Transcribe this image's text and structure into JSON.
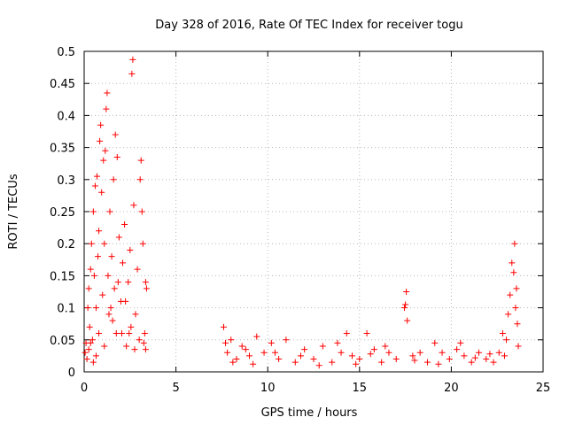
{
  "chart_data": {
    "type": "scatter",
    "title": "Day 328 of 2016, Rate Of TEC Index for receiver togu",
    "xlabel": "GPS time / hours",
    "ylabel": "ROTI / TECUs",
    "xlim": [
      0,
      25
    ],
    "ylim": [
      0,
      0.5
    ],
    "xticks": [
      0,
      5,
      10,
      15,
      20,
      25
    ],
    "xtick_labels": [
      "0",
      "5",
      "10",
      "15",
      "20",
      "25"
    ],
    "yticks": [
      0,
      0.05,
      0.1,
      0.15,
      0.2,
      0.25,
      0.3,
      0.35,
      0.4,
      0.45,
      0.5
    ],
    "ytick_labels": [
      "0",
      "0.05",
      "0.1",
      "0.15",
      "0.2",
      "0.25",
      "0.3",
      "0.35",
      "0.4",
      "0.45",
      "0.5"
    ],
    "grid": true,
    "marker": "+",
    "marker_color": "#ff0000",
    "legend": "none",
    "series": [
      {
        "values": [
          [
            0.05,
            0.03
          ],
          [
            0.1,
            0.045
          ],
          [
            0.15,
            0.02
          ],
          [
            0.2,
            0.1
          ],
          [
            0.25,
            0.13
          ],
          [
            0.3,
            0.07
          ],
          [
            0.35,
            0.16
          ],
          [
            0.4,
            0.2
          ],
          [
            0.45,
            0.05
          ],
          [
            0.5,
            0.25
          ],
          [
            0.55,
            0.15
          ],
          [
            0.6,
            0.29
          ],
          [
            0.65,
            0.1
          ],
          [
            0.7,
            0.305
          ],
          [
            0.75,
            0.18
          ],
          [
            0.8,
            0.22
          ],
          [
            0.85,
            0.36
          ],
          [
            0.9,
            0.385
          ],
          [
            0.95,
            0.28
          ],
          [
            1.0,
            0.12
          ],
          [
            1.05,
            0.33
          ],
          [
            1.1,
            0.2
          ],
          [
            1.15,
            0.345
          ],
          [
            1.2,
            0.41
          ],
          [
            1.25,
            0.435
          ],
          [
            1.3,
            0.15
          ],
          [
            1.35,
            0.09
          ],
          [
            1.4,
            0.25
          ],
          [
            1.5,
            0.18
          ],
          [
            1.6,
            0.3
          ],
          [
            1.65,
            0.13
          ],
          [
            1.7,
            0.37
          ],
          [
            1.75,
            0.06
          ],
          [
            1.8,
            0.335
          ],
          [
            1.9,
            0.21
          ],
          [
            2.0,
            0.11
          ],
          [
            2.1,
            0.17
          ],
          [
            2.2,
            0.23
          ],
          [
            2.3,
            0.04
          ],
          [
            2.4,
            0.14
          ],
          [
            2.5,
            0.19
          ],
          [
            2.55,
            0.07
          ],
          [
            2.6,
            0.465
          ],
          [
            2.65,
            0.487
          ],
          [
            2.7,
            0.26
          ],
          [
            2.8,
            0.09
          ],
          [
            2.9,
            0.16
          ],
          [
            3.0,
            0.05
          ],
          [
            3.05,
            0.3
          ],
          [
            3.1,
            0.33
          ],
          [
            3.15,
            0.25
          ],
          [
            3.2,
            0.2
          ],
          [
            3.25,
            0.045
          ],
          [
            3.3,
            0.06
          ],
          [
            3.35,
            0.14
          ],
          [
            3.4,
            0.13
          ],
          [
            0.25,
            0.035
          ],
          [
            0.5,
            0.015
          ],
          [
            0.8,
            0.06
          ],
          [
            1.1,
            0.04
          ],
          [
            1.45,
            0.1
          ],
          [
            1.85,
            0.14
          ],
          [
            2.25,
            0.11
          ],
          [
            2.75,
            0.035
          ],
          [
            3.35,
            0.035
          ],
          [
            0.35,
            0.045
          ],
          [
            0.65,
            0.025
          ],
          [
            1.55,
            0.08
          ],
          [
            2.05,
            0.06
          ],
          [
            2.45,
            0.06
          ],
          [
            7.6,
            0.07
          ],
          [
            7.8,
            0.03
          ],
          [
            8.0,
            0.05
          ],
          [
            8.3,
            0.02
          ],
          [
            8.6,
            0.04
          ],
          [
            9.0,
            0.025
          ],
          [
            9.4,
            0.055
          ],
          [
            9.8,
            0.03
          ],
          [
            10.2,
            0.045
          ],
          [
            10.6,
            0.02
          ],
          [
            11.0,
            0.05
          ],
          [
            11.5,
            0.015
          ],
          [
            12.0,
            0.035
          ],
          [
            12.5,
            0.02
          ],
          [
            13.0,
            0.04
          ],
          [
            13.5,
            0.015
          ],
          [
            14.0,
            0.03
          ],
          [
            14.3,
            0.06
          ],
          [
            14.6,
            0.025
          ],
          [
            15.0,
            0.02
          ],
          [
            15.4,
            0.06
          ],
          [
            15.8,
            0.035
          ],
          [
            16.2,
            0.015
          ],
          [
            16.6,
            0.03
          ],
          [
            17.0,
            0.02
          ],
          [
            17.45,
            0.1
          ],
          [
            17.5,
            0.105
          ],
          [
            17.55,
            0.125
          ],
          [
            17.6,
            0.08
          ],
          [
            17.9,
            0.025
          ],
          [
            18.3,
            0.03
          ],
          [
            18.7,
            0.015
          ],
          [
            19.1,
            0.045
          ],
          [
            19.5,
            0.03
          ],
          [
            19.9,
            0.02
          ],
          [
            20.3,
            0.035
          ],
          [
            20.7,
            0.025
          ],
          [
            21.1,
            0.015
          ],
          [
            21.5,
            0.03
          ],
          [
            21.9,
            0.02
          ],
          [
            22.3,
            0.015
          ],
          [
            22.6,
            0.03
          ],
          [
            22.8,
            0.06
          ],
          [
            23.0,
            0.05
          ],
          [
            23.1,
            0.09
          ],
          [
            23.2,
            0.12
          ],
          [
            23.3,
            0.17
          ],
          [
            23.4,
            0.155
          ],
          [
            23.45,
            0.2
          ],
          [
            23.5,
            0.1
          ],
          [
            23.55,
            0.13
          ],
          [
            23.6,
            0.075
          ],
          [
            23.65,
            0.04
          ],
          [
            8.1,
            0.015
          ],
          [
            9.2,
            0.012
          ],
          [
            10.4,
            0.03
          ],
          [
            11.8,
            0.025
          ],
          [
            12.8,
            0.01
          ],
          [
            13.8,
            0.045
          ],
          [
            14.8,
            0.012
          ],
          [
            15.6,
            0.028
          ],
          [
            16.4,
            0.04
          ],
          [
            18.0,
            0.018
          ],
          [
            19.3,
            0.012
          ],
          [
            20.5,
            0.045
          ],
          [
            21.3,
            0.022
          ],
          [
            22.1,
            0.028
          ],
          [
            22.9,
            0.025
          ],
          [
            7.7,
            0.045
          ],
          [
            8.8,
            0.035
          ]
        ]
      }
    ]
  }
}
